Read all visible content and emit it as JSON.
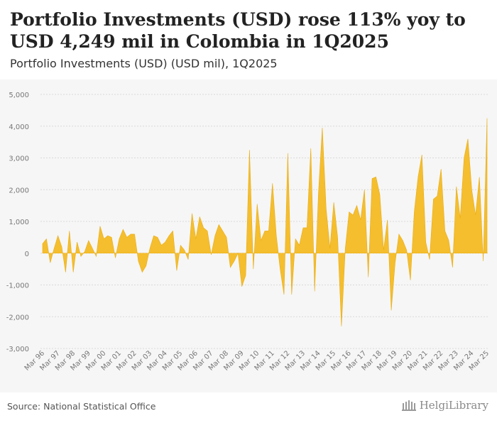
{
  "header": {
    "title": "Portfolio Investments (USD) rose 113% yoy to USD 4,249 mil in Colombia in 1Q2025",
    "subtitle": "Portfolio Investments (USD) (USD mil), 1Q2025"
  },
  "footer": {
    "source": "Source: National Statistical Office",
    "brand": "HelgiLibrary"
  },
  "colors": {
    "fill": "#f5be2e",
    "grid": "#d9d9d9",
    "axis_text": "#777777"
  },
  "chart_data": {
    "type": "area",
    "title": "Portfolio Investments (USD) (USD mil), 1Q2025",
    "ylim": [
      -3000,
      5000
    ],
    "yticks": [
      -3000,
      -2000,
      -1000,
      0,
      1000,
      2000,
      3000,
      4000,
      5000
    ],
    "ytick_labels": [
      "-3,000",
      "-2,000",
      "-1,000",
      "0",
      "1,000",
      "2,000",
      "3,000",
      "4,000",
      "5,000"
    ],
    "xtick_labels": [
      "Mar 96",
      "Mar 97",
      "Mar 98",
      "Mar 99",
      "Mar 00",
      "Mar 01",
      "Mar 02",
      "Mar 03",
      "Mar 04",
      "Mar 05",
      "Mar 06",
      "Mar 07",
      "Mar 08",
      "Mar 09",
      "Mar 10",
      "Mar 11",
      "Mar 12",
      "Mar 13",
      "Mar 14",
      "Mar 15",
      "Mar 16",
      "Mar 17",
      "Mar 18",
      "Mar 19",
      "Mar 20",
      "Mar 21",
      "Mar 22",
      "Mar 23",
      "Mar 24",
      "Mar 25"
    ],
    "series": [
      {
        "name": "Portfolio Investments (USD)",
        "start": "Mar 96",
        "frequency": "quarterly",
        "values": [
          300,
          450,
          -300,
          150,
          550,
          200,
          -600,
          700,
          -600,
          350,
          -100,
          50,
          400,
          150,
          -100,
          850,
          450,
          550,
          500,
          -150,
          450,
          750,
          500,
          600,
          600,
          -250,
          -600,
          -400,
          150,
          550,
          500,
          250,
          350,
          550,
          700,
          -550,
          250,
          100,
          -200,
          1250,
          450,
          1150,
          800,
          700,
          -50,
          550,
          900,
          700,
          500,
          -450,
          -250,
          0,
          -1050,
          -700,
          3250,
          -500,
          1550,
          400,
          700,
          700,
          2200,
          550,
          -500,
          -1300,
          3150,
          -1300,
          450,
          250,
          800,
          800,
          3300,
          -1200,
          1900,
          3950,
          1400,
          150,
          1600,
          500,
          -2300,
          150,
          1300,
          1200,
          1500,
          1050,
          2000,
          -750,
          2350,
          2400,
          1850,
          100,
          1050,
          -1800,
          -300,
          600,
          400,
          100,
          -850,
          1300,
          2400,
          3100,
          350,
          -200,
          1700,
          1800,
          2650,
          700,
          400,
          -450,
          2100,
          1100,
          3000,
          3600,
          2000,
          1200,
          2400,
          -250,
          4249
        ]
      }
    ]
  }
}
